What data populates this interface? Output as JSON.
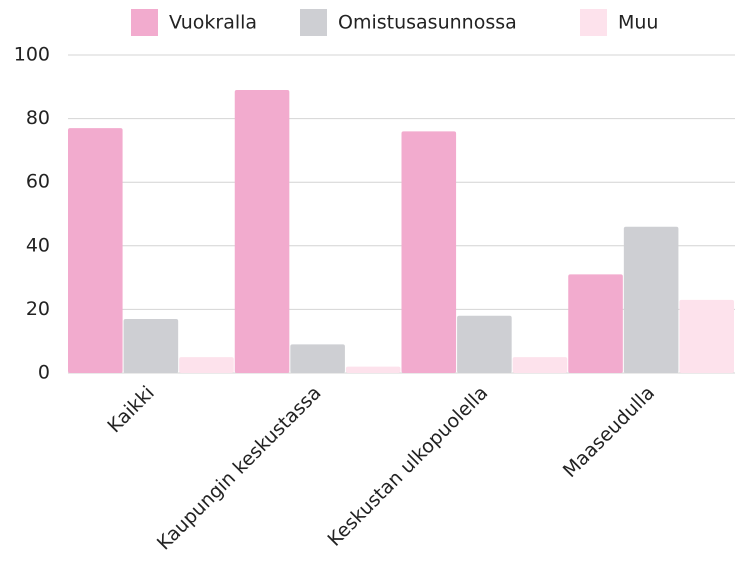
{
  "chart_data": {
    "type": "bar",
    "categories": [
      "Kaikki",
      "Kaupungin keskustassa",
      "Keskustan ulkopuolella",
      "Maaseudulla"
    ],
    "series": [
      {
        "name": "Vuokralla",
        "color": "#f2abce",
        "values": [
          77,
          89,
          76,
          31
        ]
      },
      {
        "name": "Omistusasunnossa",
        "color": "#cecfd3",
        "values": [
          17,
          9,
          18,
          46
        ]
      },
      {
        "name": "Muu",
        "color": "#fde2ec",
        "values": [
          5,
          2,
          5,
          23
        ]
      }
    ],
    "ylim": [
      0,
      100
    ],
    "yticks": [
      0,
      20,
      40,
      60,
      80,
      100
    ],
    "grid": true,
    "legend": "top"
  }
}
